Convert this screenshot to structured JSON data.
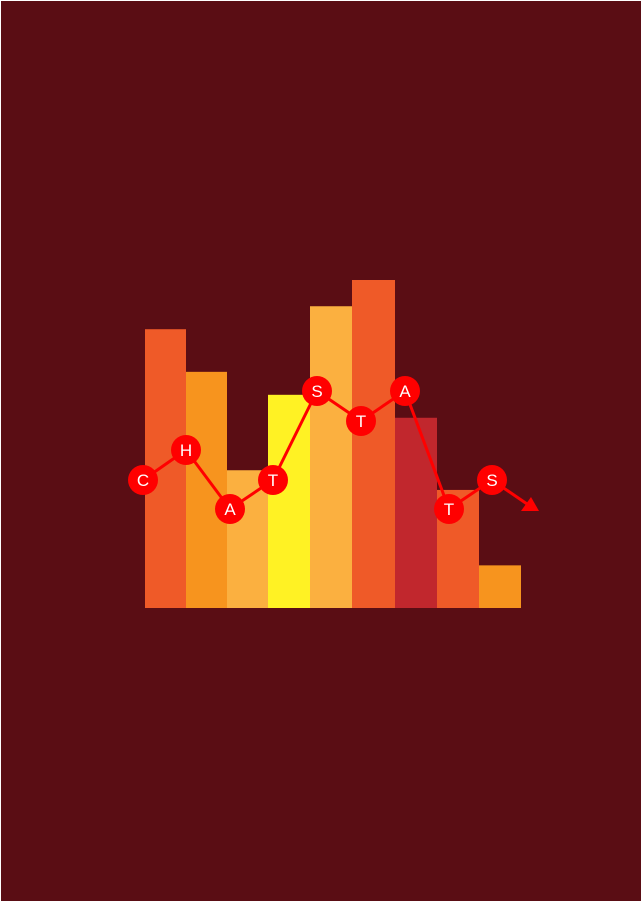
{
  "logo": {
    "letters": [
      "C",
      "H",
      "A",
      "T",
      "S",
      "T",
      "A",
      "T",
      "S"
    ],
    "bar_levels": [
      0.85,
      0.72,
      0.42,
      0.65,
      0.92,
      1.0,
      0.58,
      0.36,
      0.13
    ],
    "bar_colors": [
      "#ef5a28",
      "#f7941e",
      "#fbb040",
      "#fff224",
      "#fbb040",
      "#ef5a28",
      "#c1272d",
      "#ef5a28",
      "#f7941e"
    ],
    "line_color": "#ff0000",
    "background_color": "#5a0d14"
  }
}
